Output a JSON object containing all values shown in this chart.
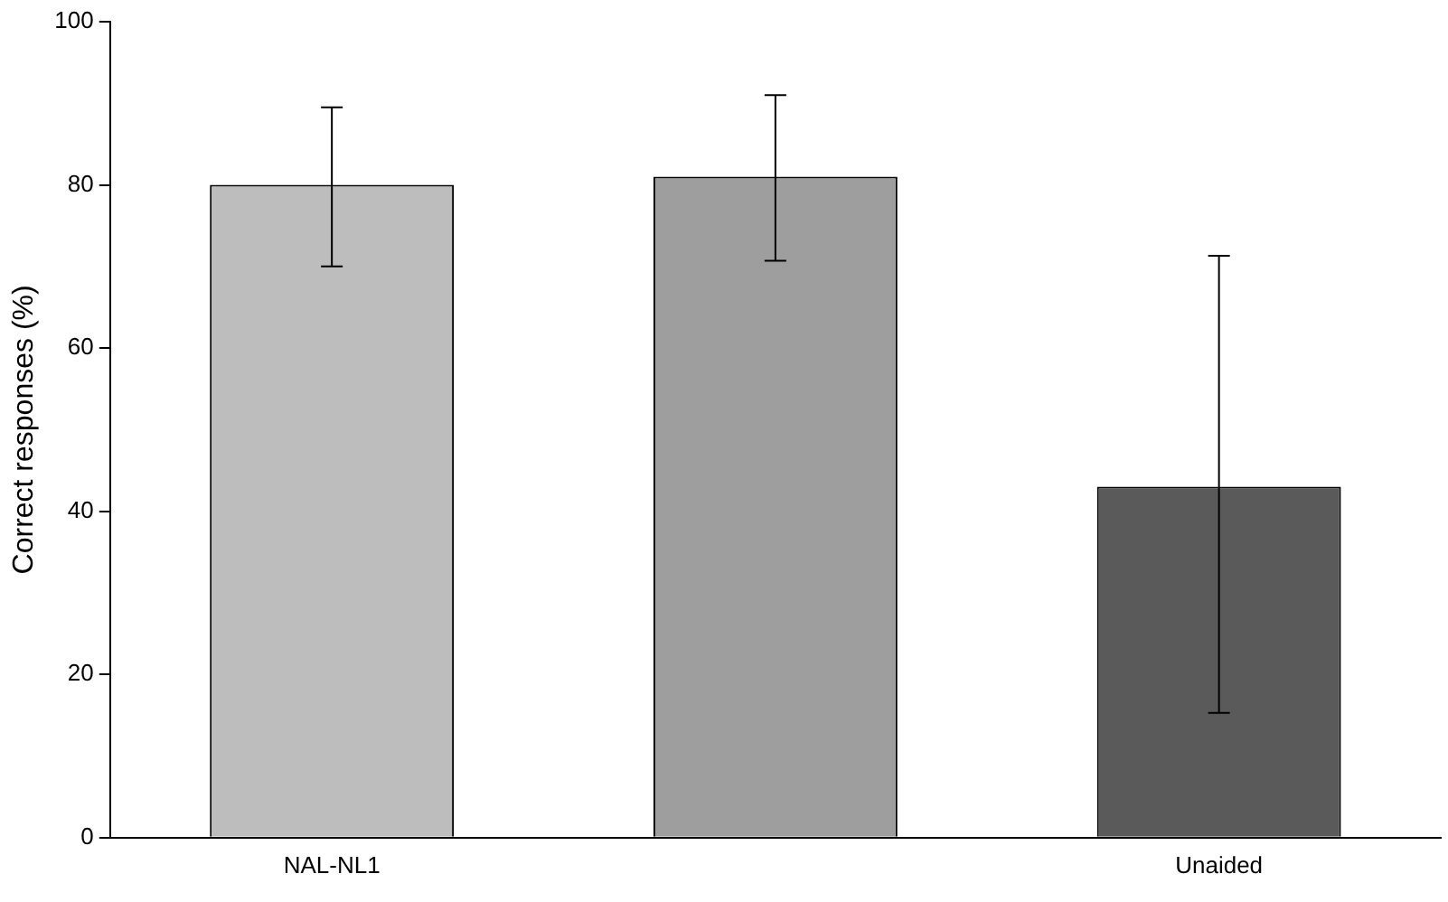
{
  "chart_data": {
    "type": "bar",
    "ylabel": "Correct responses (%)",
    "categories": [
      "NAL-NL1",
      null,
      "Unaided"
    ],
    "values": [
      80,
      81,
      43
    ],
    "colors": [
      "#bdbdbd",
      "#9e9e9e",
      "#5a5a5a"
    ],
    "errors": [
      [
        70,
        89.5
      ],
      [
        70.7,
        91
      ],
      [
        15.3,
        71.3
      ]
    ],
    "ylim": [
      0,
      100
    ],
    "yticks": [
      0,
      20,
      40,
      60,
      80,
      100
    ],
    "grid": false,
    "legend": false
  }
}
